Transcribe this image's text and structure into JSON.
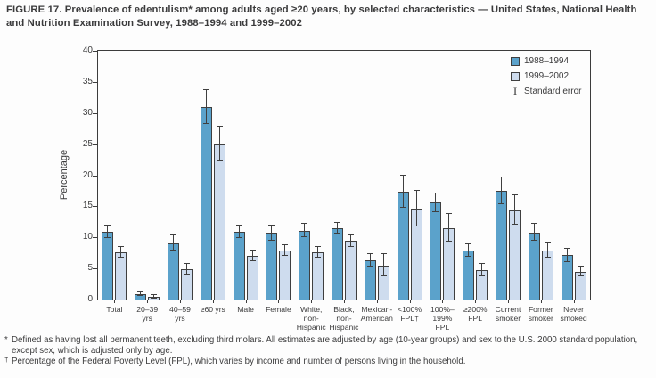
{
  "figure": {
    "title": "FIGURE 17. Prevalence of edentulism* among adults aged ≥20 years, by selected characteristics — United States, National Health and Nutrition Examination Survey, 1988–1994 and 1999–2002",
    "background_color": "#fdfdfd",
    "text_color": "#3b3b3c",
    "axis_color": "#3c3c3c"
  },
  "legend": {
    "standard_error_label": "Standard error",
    "error_glyph": "I"
  },
  "chart_data": {
    "type": "bar",
    "title": "Prevalence of edentulism among adults aged ≥20 years",
    "xlabel": "",
    "ylabel": "Percentage",
    "ylim": [
      0,
      40
    ],
    "ytick_step": 5,
    "yticks": [
      0,
      5,
      10,
      15,
      20,
      25,
      30,
      35,
      40
    ],
    "grid": false,
    "legend_position": "top-right-inside",
    "error_bars": "standard error",
    "categories": [
      "Total",
      "20–39\nyrs",
      "40–59\nyrs",
      "≥60 yrs",
      "Male",
      "Female",
      "White,\nnon-\nHispanic",
      "Black,\nnon-\nHispanic",
      "Mexican-\nAmerican",
      "<100%\nFPL†",
      "100%–\n199%\nFPL",
      "≥200%\nFPL",
      "Current\nsmoker",
      "Former\nsmoker",
      "Never\nsmoked"
    ],
    "series": [
      {
        "name": "1988–1994",
        "color": "#5ba2cb",
        "values": [
          10.9,
          0.9,
          9.1,
          31.0,
          10.9,
          10.7,
          11.1,
          11.5,
          6.3,
          17.3,
          15.6,
          7.9,
          17.5,
          10.8,
          7.1
        ],
        "standard_errors": [
          1.0,
          0.35,
          1.2,
          2.7,
          1.0,
          1.2,
          1.1,
          0.9,
          1.0,
          2.6,
          1.5,
          1.0,
          2.2,
          1.4,
          1.1
        ]
      },
      {
        "name": "1999–2002",
        "color": "#cedcee",
        "values": [
          7.6,
          0.4,
          4.9,
          25.0,
          7.0,
          7.9,
          7.6,
          9.4,
          5.5,
          14.6,
          11.5,
          4.7,
          14.4,
          7.9,
          4.5
        ],
        "standard_errors": [
          0.9,
          0.25,
          0.9,
          2.8,
          0.9,
          0.9,
          0.9,
          0.9,
          1.8,
          2.9,
          2.2,
          1.0,
          2.4,
          1.2,
          0.8
        ]
      }
    ]
  },
  "footnotes": [
    {
      "marker": "*",
      "text": "Defined as having lost all permanent teeth, excluding third molars. All estimates are adjusted by age (10-year groups) and sex to the U.S. 2000 standard population, except sex, which is adjusted only by age."
    },
    {
      "marker": "†",
      "text": "Percentage of the Federal Poverty Level (FPL), which varies by income and number of persons living in the household."
    }
  ]
}
